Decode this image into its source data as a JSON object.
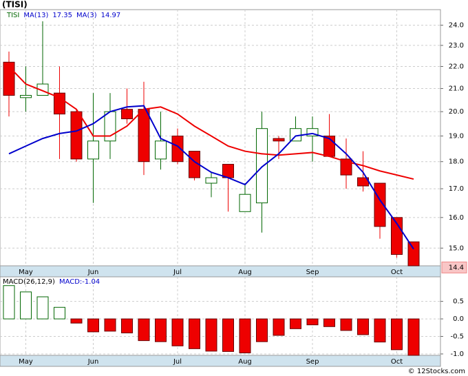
{
  "chart_data": [
    {
      "type": "candlestick",
      "title": "(TISI)",
      "symbol": "TISI",
      "categories": [
        null,
        "May",
        null,
        null,
        null,
        "Jun",
        null,
        null,
        null,
        null,
        "Jul",
        null,
        null,
        null,
        "Aug",
        null,
        null,
        null,
        "Sep",
        null,
        null,
        null,
        null,
        "Oct",
        null
      ],
      "open": [
        22.2,
        20.6,
        20.7,
        20.8,
        20.0,
        18.1,
        18.8,
        20.1,
        20.1,
        18.1,
        19.0,
        18.4,
        17.2,
        17.9,
        16.2,
        16.5,
        18.9,
        18.8,
        19.0,
        19.0,
        18.1,
        17.4,
        17.2,
        16.0,
        15.2
      ],
      "high": [
        22.7,
        22.0,
        24.2,
        22.0,
        20.1,
        20.8,
        20.8,
        21.0,
        21.3,
        20.0,
        19.3,
        18.4,
        17.6,
        17.9,
        17.2,
        20.0,
        19.0,
        19.8,
        19.8,
        19.9,
        18.9,
        18.4,
        17.2,
        16.0,
        15.2
      ],
      "low": [
        19.8,
        20.0,
        20.7,
        18.1,
        18.0,
        16.5,
        18.1,
        19.5,
        17.5,
        17.7,
        17.9,
        17.3,
        16.7,
        16.2,
        16.2,
        15.5,
        18.1,
        18.8,
        18.0,
        18.2,
        17.0,
        16.9,
        15.3,
        14.7,
        14.45
      ],
      "close": [
        20.7,
        20.7,
        21.2,
        19.9,
        18.1,
        18.8,
        20.0,
        19.7,
        18.0,
        18.8,
        18.0,
        17.4,
        17.4,
        17.4,
        16.8,
        19.3,
        18.8,
        19.3,
        19.3,
        18.2,
        17.5,
        17.1,
        15.7,
        14.8,
        14.45
      ],
      "up_color": "#006600",
      "down_color": "#ee0000",
      "series": [
        {
          "name": "MA(13)",
          "color": "#ee0000",
          "values": [
            22.0,
            21.2,
            20.9,
            20.6,
            20.1,
            19.0,
            19.0,
            19.4,
            20.1,
            20.2,
            19.9,
            19.4,
            19.0,
            18.6,
            18.4,
            18.3,
            18.25,
            18.3,
            18.35,
            18.2,
            18.0,
            17.85,
            17.65,
            17.5,
            17.35
          ]
        },
        {
          "name": "MA(3)",
          "color": "#0000cc",
          "values": [
            18.3,
            18.6,
            18.9,
            19.1,
            19.2,
            19.5,
            20.0,
            20.2,
            20.25,
            18.9,
            18.6,
            18.0,
            17.6,
            17.4,
            17.15,
            17.8,
            18.3,
            19.0,
            19.1,
            18.9,
            18.3,
            17.6,
            16.6,
            15.8,
            14.97
          ]
        }
      ],
      "last_price": 14.4,
      "log_scale": true,
      "ylim": [
        14.45,
        24.8
      ],
      "yticks": [
        {
          "value": 15,
          "label": "15.0"
        },
        {
          "value": 16,
          "label": "16.0"
        },
        {
          "value": 17,
          "label": "17.0"
        },
        {
          "value": 18,
          "label": "18.0"
        },
        {
          "value": 19,
          "label": "19.0"
        },
        {
          "value": 20,
          "label": "20.0"
        },
        {
          "value": 21,
          "label": "21.0"
        },
        {
          "value": 22,
          "label": "22.0"
        },
        {
          "value": 23,
          "label": "23.0"
        },
        {
          "value": 24,
          "label": "24.0"
        }
      ],
      "grid": true
    },
    {
      "type": "bar",
      "title": "MACD(26,12,9)",
      "legend": "MACD:-1.04",
      "categories": [
        null,
        "May",
        null,
        null,
        null,
        "Jun",
        null,
        null,
        null,
        null,
        "Jul",
        null,
        null,
        null,
        "Aug",
        null,
        null,
        null,
        "Sep",
        null,
        null,
        null,
        null,
        "Oct",
        null
      ],
      "values": [
        0.95,
        0.77,
        0.63,
        0.33,
        -0.12,
        -0.37,
        -0.35,
        -0.4,
        -0.62,
        -0.65,
        -0.77,
        -0.85,
        -0.92,
        -0.93,
        -0.97,
        -0.65,
        -0.47,
        -0.28,
        -0.17,
        -0.22,
        -0.33,
        -0.45,
        -0.66,
        -0.88,
        -1.04
      ],
      "up_color": "#006600",
      "down_color": "#ee0000",
      "ylim": [
        -1.04,
        1.2
      ],
      "yticks": [
        {
          "value": -1,
          "label": "-1.0"
        },
        {
          "value": -0.5,
          "label": "-0.5"
        },
        {
          "value": 0,
          "label": "0.0"
        },
        0.5
      ],
      "grid": true
    },
    {
      "type": "footer",
      "text": "© 12Stocks.com"
    }
  ]
}
